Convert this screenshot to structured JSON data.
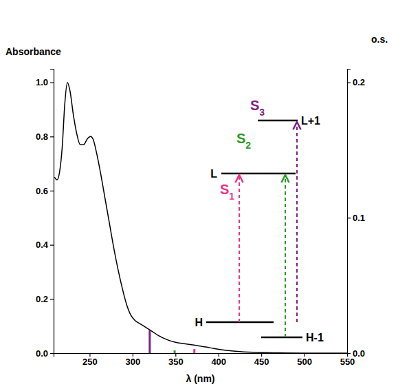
{
  "chart_data": {
    "type": "line",
    "x_label": "λ (nm)",
    "y_label": "Absorbance",
    "y2_label": "o.s.",
    "xlim": [
      208,
      550
    ],
    "xticks": [
      250,
      300,
      350,
      400,
      450,
      500,
      550
    ],
    "ylim": [
      0,
      1.05
    ],
    "yticks": [
      {
        "value": 0,
        "label": "0.0"
      },
      0.2,
      0.4,
      0.6,
      0.8,
      {
        "value": 1,
        "label": "1.0"
      }
    ],
    "y2lim": [
      0,
      0.21
    ],
    "y2ticks": [
      {
        "value": 0,
        "label": "0.0"
      },
      0.1,
      0.2
    ],
    "series": [
      {
        "type": "line",
        "color": "#000000",
        "x": [
          209,
          212,
          215,
          218,
          221,
          224,
          227,
          231,
          235,
          239,
          243,
          247,
          251,
          254,
          258,
          263,
          268,
          273,
          278,
          283,
          288,
          293,
          298,
          303,
          308,
          313,
          318,
          323,
          330,
          340,
          350,
          360,
          375,
          390,
          405,
          420,
          440,
          470,
          500,
          550
        ],
        "values": [
          0.65,
          0.64,
          0.67,
          0.76,
          0.92,
          1.0,
          0.97,
          0.88,
          0.81,
          0.77,
          0.77,
          0.79,
          0.8,
          0.79,
          0.74,
          0.66,
          0.57,
          0.48,
          0.39,
          0.31,
          0.24,
          0.18,
          0.14,
          0.12,
          0.11,
          0.1,
          0.09,
          0.08,
          0.065,
          0.05,
          0.04,
          0.035,
          0.028,
          0.02,
          0.012,
          0.007,
          0.003,
          0.001,
          0,
          0
        ]
      },
      {
        "type": "bar",
        "axis": "y2",
        "colors": [
          "#7f1f84",
          "#2a9a2a",
          "#e8338a"
        ],
        "x": [
          320,
          349,
          372
        ],
        "values": [
          0.017,
          0.002,
          0.003
        ]
      }
    ],
    "annotations": {
      "levels": [
        "L+1",
        "L",
        "H",
        "H-1"
      ],
      "transitions": [
        {
          "label": "S1",
          "color": "#e8338a"
        },
        {
          "label": "S2",
          "color": "#2a9a2a"
        },
        {
          "label": "S3",
          "color": "#7f1f84"
        }
      ]
    }
  }
}
